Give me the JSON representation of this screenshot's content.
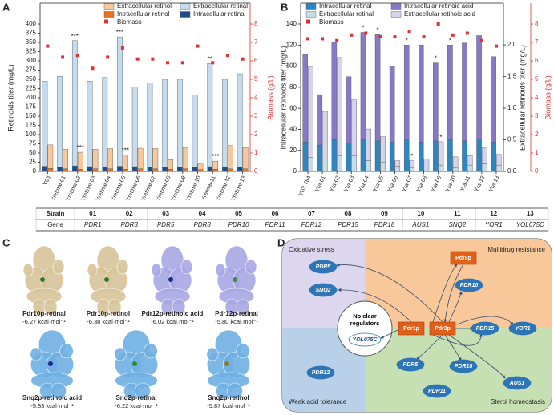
{
  "chart_data": [
    {
      "type": "bar",
      "panel": "A",
      "ylabel": "Retinoids titer (mg/L)",
      "y2label": "Biomass (g/L)",
      "categories": [
        "Y03",
        "Yretinal-01",
        "Yretinal-02",
        "Yretinal-03",
        "Yretinal-04",
        "Yretinal-05",
        "Yretinal-06",
        "Yretinal-07",
        "Yretinal-08",
        "Yretinal-09",
        "Yretinal-10",
        "Yretinal-11",
        "Yretinal-12",
        "Yretinal-13"
      ],
      "ylim": [
        0,
        400
      ],
      "yticks": [
        0,
        25,
        50,
        75,
        100,
        125,
        150,
        175,
        200,
        225,
        250,
        275,
        300,
        325,
        350,
        375,
        400
      ],
      "y2lim": [
        0,
        8
      ],
      "y2ticks": [
        0,
        1,
        2,
        3,
        4,
        5,
        6,
        7,
        8
      ],
      "series": [
        {
          "name": "Intracellular retinal",
          "color": "#1f4e8c",
          "values": [
            14,
            12,
            15,
            13,
            12,
            14,
            13,
            12,
            12,
            12,
            12,
            13,
            12,
            12
          ]
        },
        {
          "name": "Extracellular retinal",
          "color": "#c5dbee",
          "values": [
            231,
            246,
            340,
            232,
            243,
            351,
            217,
            228,
            238,
            238,
            195,
            280,
            238,
            253
          ],
          "significance": [
            null,
            null,
            "***",
            null,
            null,
            "***",
            null,
            null,
            null,
            null,
            null,
            "**",
            null,
            null
          ]
        },
        {
          "name": "Intracellular retinol",
          "color": "#e8731e",
          "values": [
            8,
            7,
            6,
            7,
            7,
            6,
            7,
            7,
            6,
            7,
            5,
            6,
            7,
            7
          ]
        },
        {
          "name": "Extracellular retinol",
          "color": "#f8c79a",
          "values": [
            64,
            53,
            46,
            53,
            55,
            39,
            56,
            55,
            26,
            58,
            15,
            22,
            63,
            58
          ],
          "significance": [
            null,
            null,
            "***",
            null,
            null,
            "***",
            null,
            null,
            null,
            null,
            null,
            "***",
            null,
            null
          ]
        },
        {
          "name": "Biomass",
          "type": "scatter",
          "axis": "y2",
          "color": "#e03030",
          "values": [
            6.8,
            6.2,
            6.3,
            5.6,
            6.2,
            6.7,
            6.1,
            6.1,
            5.9,
            5.9,
            6.8,
            5.9,
            6.3,
            6.1
          ]
        }
      ]
    },
    {
      "type": "bar",
      "panel": "B",
      "ylabel": "Intracellular retinoids titer (mg/L)",
      "y2label": "Extracellular retinoids titer (mg/L)",
      "y3label": "Biomass (g/L)",
      "categories": [
        "Y03-784",
        "Yra-01",
        "Yra-02",
        "Yra-03",
        "Yra-04",
        "Yra-05",
        "Yra-06",
        "Yra-07",
        "Yra-08",
        "Yra-09",
        "Yra-10",
        "Yra-11",
        "Yra-12",
        "Yra-13"
      ],
      "ylim": [
        0,
        140
      ],
      "yticks": [
        0,
        20,
        40,
        60,
        80,
        100,
        120,
        140
      ],
      "y2lim": [
        0,
        2.33
      ],
      "y2ticks": [
        {
          "value": 0,
          "label": "0.0"
        },
        0.5,
        {
          "value": 1,
          "label": "1.0"
        },
        1.5,
        {
          "value": 2,
          "label": "2.0"
        }
      ],
      "y3lim": [
        0,
        8
      ],
      "y3ticks": [
        0,
        1,
        2,
        3,
        4,
        5,
        6,
        7,
        8
      ],
      "series": [
        {
          "name": "Intracellular retinal",
          "color": "#2e86c1",
          "values": [
            28,
            25,
            30,
            27,
            30,
            29,
            28,
            30,
            28,
            29,
            30,
            29,
            31,
            28
          ]
        },
        {
          "name": "Intracellular retinoic acid",
          "color": "#8878c8",
          "values": [
            83,
            48,
            93,
            63,
            102,
            101,
            72,
            90,
            92,
            74,
            90,
            93,
            98,
            81
          ],
          "significance": [
            null,
            null,
            null,
            null,
            "*",
            "*",
            null,
            "*",
            null,
            "*",
            "*",
            null,
            null,
            null
          ]
        },
        {
          "name": "Extracellular retinal",
          "axis": "y2",
          "color": "#c8dce8",
          "values": [
            0.22,
            0.2,
            0.25,
            0.25,
            0.17,
            0.15,
            0.08,
            0.06,
            0.07,
            0.1,
            0.06,
            0.1,
            0.12,
            0.1
          ]
        },
        {
          "name": "Extracellular retinoic acid",
          "axis": "y2",
          "color": "#d6d4ec",
          "values": [
            1.43,
            0.75,
            1.55,
            0.88,
            0.5,
            0.4,
            0.09,
            0.11,
            0.13,
            0.37,
            0.17,
            0.15,
            0.25,
            0.17
          ],
          "significance": [
            null,
            null,
            null,
            null,
            null,
            null,
            null,
            "*",
            null,
            "*",
            null,
            null,
            null,
            null
          ]
        },
        {
          "name": "Biomass",
          "type": "scatter",
          "axis": "y3",
          "color": "#e03030",
          "values": [
            7.2,
            7.2,
            7.1,
            7.4,
            7.5,
            7.3,
            7.3,
            7.6,
            7.3,
            8.0,
            7.4,
            7.5,
            7.1,
            6.8
          ]
        }
      ]
    }
  ],
  "table": {
    "header": [
      "Strain",
      "01",
      "02",
      "03",
      "04",
      "05",
      "06",
      "07",
      "08",
      "09",
      "10",
      "11",
      "12",
      "13"
    ],
    "rows": [
      [
        "Gene",
        "PDR1",
        "PDR3",
        "PDR5",
        "PDR8",
        "PDR10",
        "PDR11",
        "PDR12",
        "PDR15",
        "PDR18",
        "AUS1",
        "SNQ2",
        "YOR1",
        "YOL075C"
      ]
    ]
  },
  "panel_c": {
    "letter": "C",
    "structures": [
      {
        "label": "Pdr10p-retinal",
        "energy": "-6.27 kcal·mol⁻¹"
      },
      {
        "label": "Pdr10p-retinol",
        "energy": "-6.38 kcal·mol⁻¹"
      },
      {
        "label": "Pdr12p-retinoic acid",
        "energy": "-6.02 kcal·mol⁻¹"
      },
      {
        "label": "Pdr12p-retinal",
        "energy": "-5.80 kcal·mol⁻¹"
      },
      {
        "label": "Snq2p-retinoic acid",
        "energy": "-5.83 kcal·mol⁻¹"
      },
      {
        "label": "Snq2p-retinal",
        "energy": "-6.22 kcal·mol⁻¹"
      },
      {
        "label": "Snq2p-retinol",
        "energy": "-5.87 kcal·mol⁻¹"
      }
    ]
  },
  "panel_d": {
    "letter": "D",
    "regions": [
      "Oxidative stress",
      "Multidrug resistance",
      "Weak acid tolerance",
      "Sterol homeostasis"
    ],
    "center": "No clear regulators",
    "nodes": [
      "PDR5",
      "SNQ2",
      "Pdr8p",
      "PDR10",
      "Pdr1p",
      "Pdr3p",
      "PDR15",
      "YOR1",
      "YOL075C",
      "PDR12",
      "PDR5",
      "PDR18",
      "PDR11",
      "AUS1"
    ]
  }
}
